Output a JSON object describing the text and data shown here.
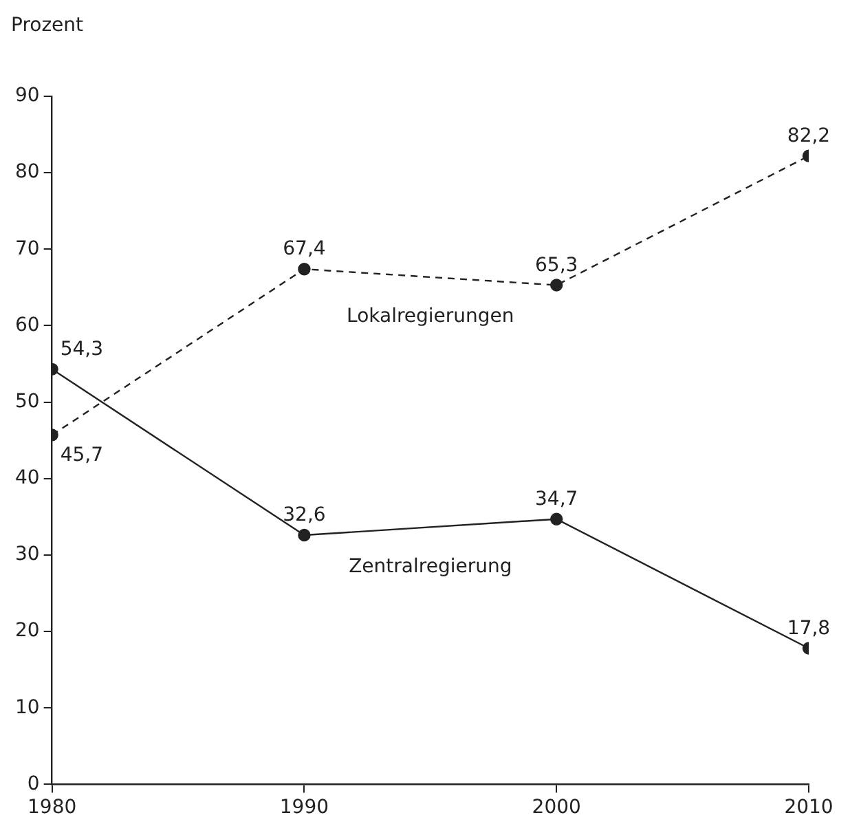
{
  "chart_data": {
    "type": "line",
    "ylabel": "Prozent",
    "x": [
      1980,
      1990,
      2000,
      2010
    ],
    "xlim": [
      1980,
      2010
    ],
    "xticks": [
      1980,
      1990,
      2000,
      2010
    ],
    "ylim": [
      0,
      90
    ],
    "yticks": [
      0,
      10,
      20,
      30,
      40,
      50,
      60,
      70,
      80,
      90
    ],
    "grid": false,
    "legend": false,
    "marker": "circle",
    "series": [
      {
        "name": "Lokalregierungen",
        "color": "#222222",
        "line_style": "dashed",
        "values": [
          45.7,
          67.4,
          65.3,
          82.2
        ],
        "value_labels": [
          "45,7",
          "67,4",
          "65,3",
          "82,2"
        ]
      },
      {
        "name": "Zentralregierung",
        "color": "#222222",
        "line_style": "solid",
        "values": [
          54.3,
          32.6,
          34.7,
          17.8
        ],
        "value_labels": [
          "54,3",
          "32,6",
          "34,7",
          "17,8"
        ]
      }
    ]
  }
}
